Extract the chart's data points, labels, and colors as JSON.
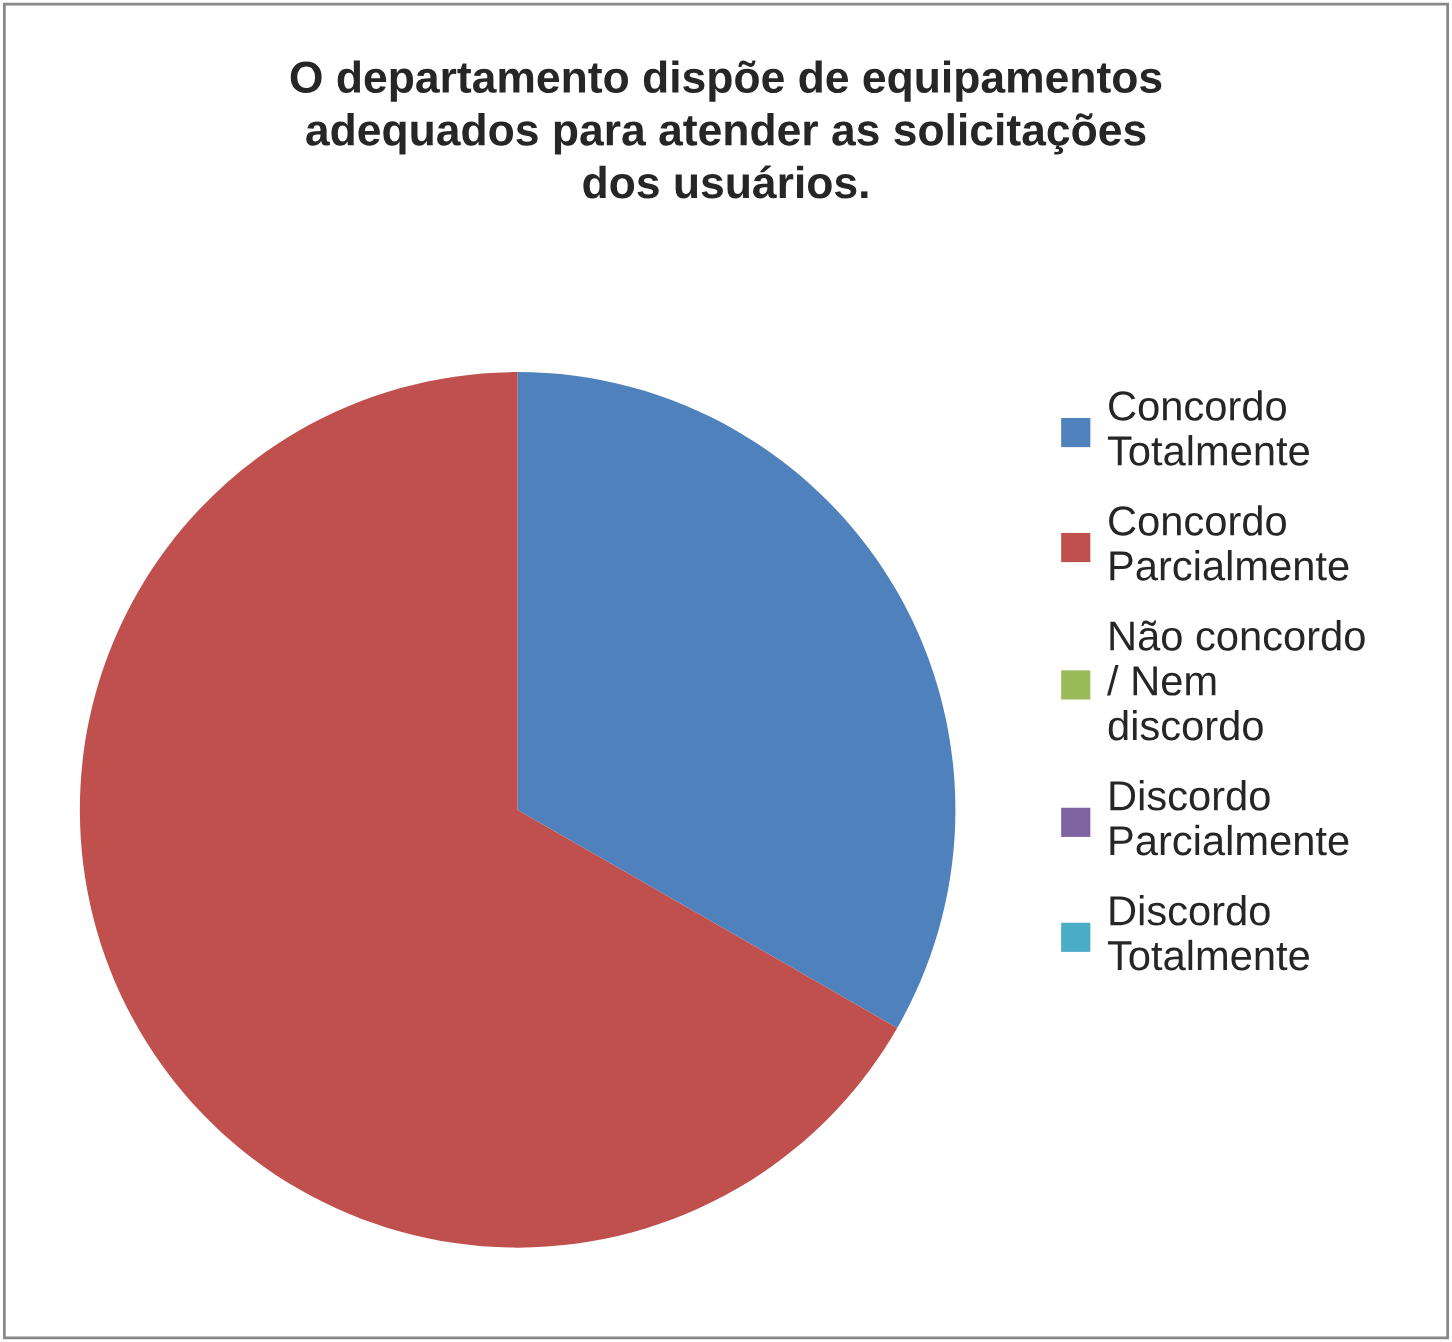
{
  "chart_data": {
    "type": "pie",
    "title": "O departamento dispõe de equipamentos adequados para atender as solicitações dos usuários.",
    "categories": [
      "Concordo Totalmente",
      "Concordo Parcialmente",
      "Não concordo / Nem discordo",
      "Discordo Parcialmente",
      "Discordo Totalmente"
    ],
    "values": [
      33.3,
      66.7,
      0,
      0,
      0
    ],
    "colors": [
      "#4f81bd",
      "#c0504d",
      "#9bbb59",
      "#8064a2",
      "#4bacc6"
    ],
    "legend": "right"
  }
}
